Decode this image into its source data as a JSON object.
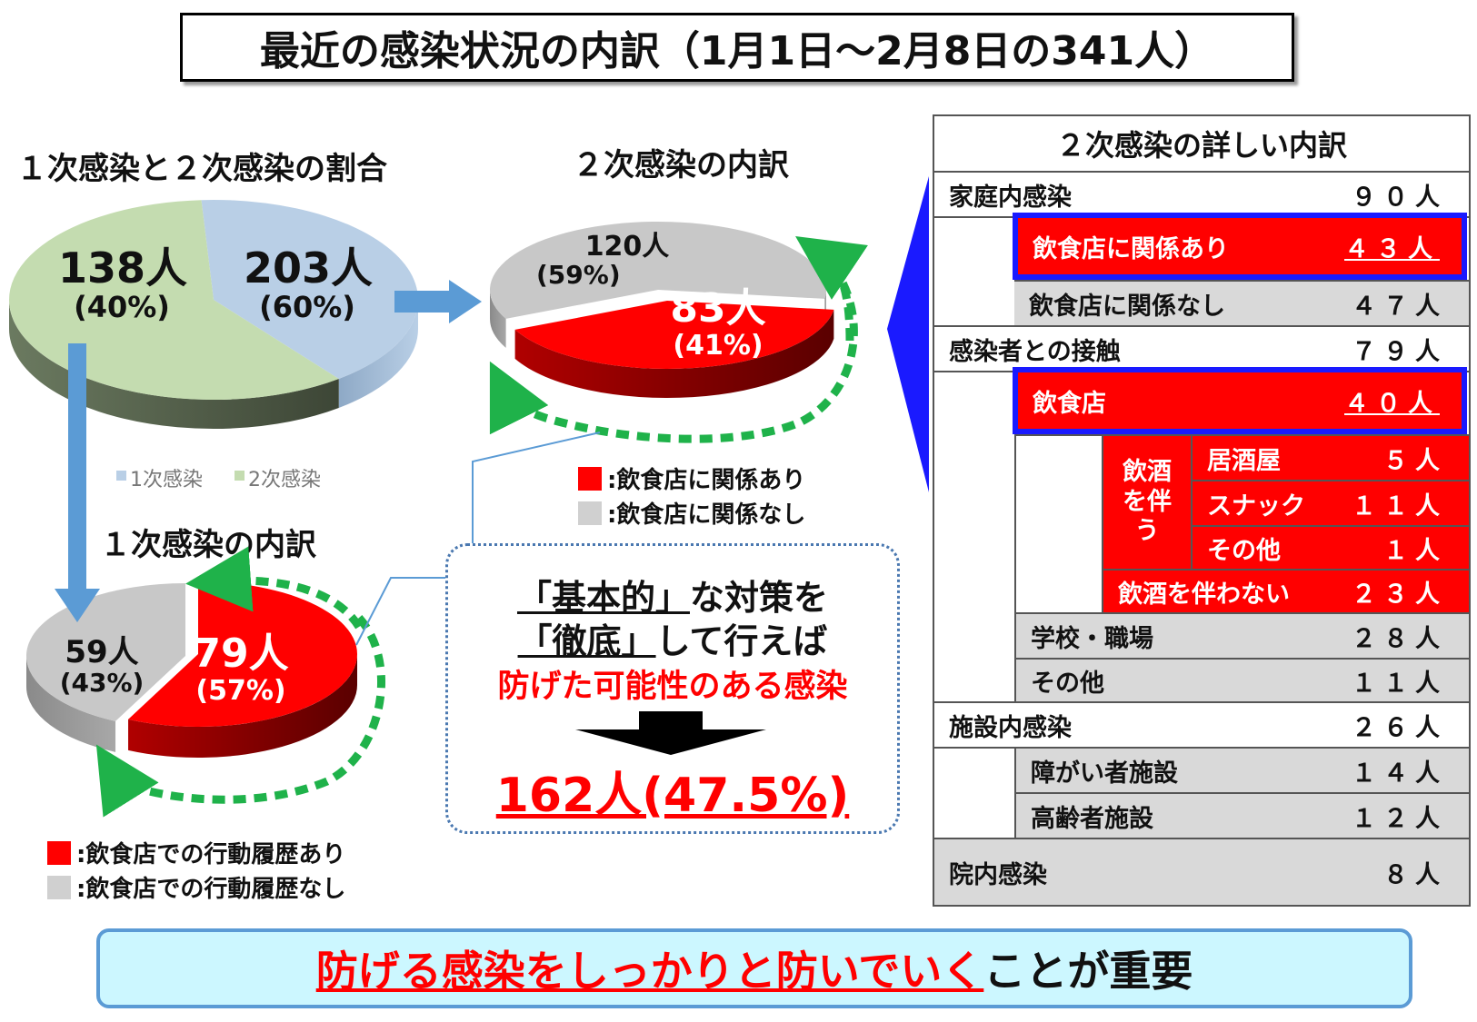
{
  "title": "最近の感染状況の内訳（1月1日～2月8日の341人）",
  "colors": {
    "red": "#ff0000",
    "grey": "#c8c8c8",
    "blue_light": "#b9cfe6",
    "green_light": "#c4dcb0",
    "highlight_blue": "#1a1aff",
    "arrow_blue": "#5b9bd5",
    "dash_green": "#1fb24a"
  },
  "chart_data": [
    {
      "type": "pie",
      "title": "１次感染と２次感染の割合",
      "categories": [
        "1次感染",
        "2次感染"
      ],
      "values": [
        138,
        203
      ],
      "labels": [
        {
          "count": "138人",
          "pct": "(40%)"
        },
        {
          "count": "203人",
          "pct": "(60%)"
        }
      ],
      "legend": [
        "1次感染",
        "2次感染"
      ]
    },
    {
      "type": "pie",
      "title": "２次感染の内訳",
      "categories": [
        "飲食店に関係あり",
        "飲食店に関係なし"
      ],
      "values": [
        83,
        120
      ],
      "labels": [
        {
          "count": "83人",
          "pct": "(41%)"
        },
        {
          "count": "120人",
          "pct": "(59%)"
        }
      ],
      "legend": [
        ":飲食店に関係あり",
        ":飲食店に関係なし"
      ]
    },
    {
      "type": "pie",
      "title": "１次感染の内訳",
      "categories": [
        "飲食店での行動履歴あり",
        "飲食店での行動履歴なし"
      ],
      "values": [
        79,
        59
      ],
      "labels": [
        {
          "count": "79人",
          "pct": "(57%)"
        },
        {
          "count": "59人",
          "pct": "(43%)"
        }
      ],
      "legend": [
        ":飲食店での行動履歴あり",
        ":飲食店での行動履歴なし"
      ]
    }
  ],
  "table": {
    "title": "２次感染の詳しい内訳",
    "rows": [
      {
        "label": "家庭内感染",
        "value": "９０人"
      },
      {
        "label": "飲食店に関係あり",
        "value": "４３人"
      },
      {
        "label": "飲食店に関係なし",
        "value": "４７人"
      },
      {
        "label": "感染者との接触",
        "value": "７９人"
      },
      {
        "label": "飲食店",
        "value": "４０人"
      },
      {
        "label": "飲酒を伴う"
      },
      {
        "label": "居酒屋",
        "value": "５人"
      },
      {
        "label": "スナック",
        "value": "１１人"
      },
      {
        "label": "その他",
        "value": "１人"
      },
      {
        "label": "飲酒を伴わない",
        "value": "２３人"
      },
      {
        "label": "学校・職場",
        "value": "２８人"
      },
      {
        "label": "その他",
        "value": "１１人"
      },
      {
        "label": "施設内感染",
        "value": "２６人"
      },
      {
        "label": "障がい者施設",
        "value": "１４人"
      },
      {
        "label": "高齢者施設",
        "value": "１２人"
      },
      {
        "label": "院内感染",
        "value": "８人"
      }
    ]
  },
  "callout": {
    "line1_q": "「基本的」",
    "line1_rest": "な対策を",
    "line2_q": "「徹底」",
    "line2_rest": "して行えば",
    "line3": "防げた可能性のある感染",
    "result": "162人(47.5%)"
  },
  "banner": {
    "red_part": "防げる感染をしっかりと防いでいく",
    "black_part": "ことが重要"
  }
}
